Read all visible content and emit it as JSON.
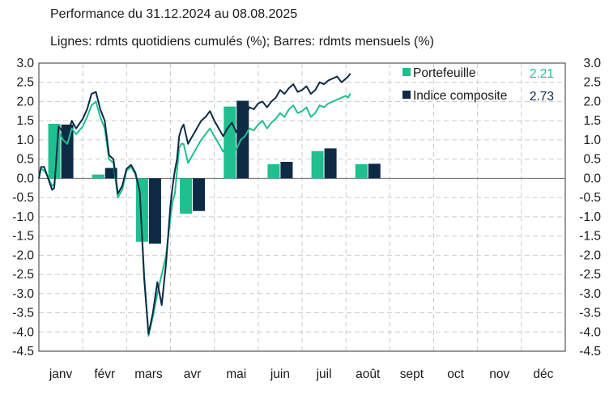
{
  "title": "Performance du 31.12.2024 au 08.08.2025",
  "subtitle": "Lignes: rdmts quotidiens cumulés (%); Barres: rdmts mensuels (%)",
  "colors": {
    "portfolio": "#1fbf8f",
    "index": "#0d2b45",
    "grid": "#cccccc"
  },
  "legend": [
    {
      "label": "Portefeuille",
      "value": "2.21",
      "color": "#1fbf8f"
    },
    {
      "label": "Indice composite",
      "value": "2.73",
      "color": "#0d2b45"
    }
  ],
  "chart_data": {
    "type": "bar+line",
    "title": "Performance du 31.12.2024 au 08.08.2025",
    "subtitle": "Lignes: rdmts quotidiens cumulés (%); Barres: rdmts mensuels (%)",
    "categories": [
      "janv",
      "févr",
      "mars",
      "avr",
      "mai",
      "juin",
      "juil",
      "août",
      "sept",
      "oct",
      "nov",
      "déc"
    ],
    "ylim": [
      -4.5,
      3.0
    ],
    "yticks": [
      "3.0",
      "2.5",
      "2.0",
      "1.5",
      "1.0",
      "0.5",
      "0.0",
      "-0.5",
      "-1.0",
      "-1.5",
      "-2.0",
      "-2.5",
      "-3.0",
      "-3.5",
      "-4.0",
      "-4.5"
    ],
    "bar_series": [
      {
        "name": "Portefeuille",
        "values": [
          1.42,
          0.1,
          -1.65,
          -0.92,
          1.87,
          0.37,
          0.71,
          0.37,
          null,
          null,
          null,
          null
        ]
      },
      {
        "name": "Indice composite",
        "values": [
          1.4,
          0.27,
          -1.7,
          -0.85,
          2.02,
          0.43,
          0.78,
          0.38,
          null,
          null,
          null,
          null
        ]
      }
    ],
    "line_series": [
      {
        "name": "Portefeuille",
        "x": [
          0,
          0.05,
          0.12,
          0.18,
          0.3,
          0.35,
          0.45,
          0.55,
          0.65,
          0.75,
          0.85,
          1.0,
          1.1,
          1.2,
          1.3,
          1.4,
          1.5,
          1.6,
          1.7,
          1.8,
          1.9,
          2.0,
          2.1,
          2.2,
          2.3,
          2.4,
          2.5,
          2.6,
          2.7,
          2.8,
          2.9,
          3.0,
          3.05,
          3.1,
          3.15,
          3.2,
          3.25,
          3.3,
          3.4,
          3.5,
          3.6,
          3.7,
          3.8,
          3.9,
          4.0,
          4.1,
          4.2,
          4.3,
          4.4,
          4.5,
          4.6,
          4.7,
          4.8,
          4.9,
          5.0,
          5.1,
          5.2,
          5.3,
          5.4,
          5.5,
          5.6,
          5.7,
          5.8,
          5.9,
          6.0,
          6.1,
          6.2,
          6.3,
          6.4,
          6.5,
          6.6,
          6.7,
          6.8,
          6.9,
          7.0,
          7.05,
          7.1
        ],
        "y": [
          0.0,
          0.25,
          0.2,
          0.1,
          -0.2,
          -0.15,
          1.2,
          1.0,
          0.9,
          1.3,
          1.15,
          1.35,
          1.6,
          1.9,
          2.0,
          1.6,
          1.3,
          0.5,
          0.4,
          -0.5,
          -0.3,
          0.2,
          0.3,
          0.1,
          -0.4,
          -2.5,
          -4.1,
          -3.6,
          -3.0,
          -2.5,
          -2.0,
          -1.0,
          -0.6,
          -0.4,
          0.2,
          0.8,
          0.9,
          0.9,
          0.4,
          0.6,
          0.8,
          1.0,
          1.15,
          1.3,
          1.1,
          0.9,
          0.7,
          0.9,
          1.0,
          0.75,
          1.0,
          1.1,
          1.3,
          1.25,
          1.4,
          1.5,
          1.3,
          1.45,
          1.55,
          1.7,
          1.6,
          1.8,
          1.9,
          1.7,
          1.75,
          1.85,
          1.6,
          1.7,
          1.9,
          1.85,
          1.95,
          2.0,
          2.05,
          2.1,
          2.15,
          2.1,
          2.21
        ]
      },
      {
        "name": "Indice composite",
        "x": [
          0,
          0.05,
          0.12,
          0.18,
          0.3,
          0.35,
          0.45,
          0.55,
          0.65,
          0.75,
          0.85,
          1.0,
          1.1,
          1.2,
          1.3,
          1.4,
          1.5,
          1.6,
          1.7,
          1.8,
          1.9,
          2.0,
          2.1,
          2.2,
          2.3,
          2.4,
          2.5,
          2.6,
          2.7,
          2.8,
          2.9,
          3.0,
          3.05,
          3.1,
          3.15,
          3.2,
          3.25,
          3.3,
          3.4,
          3.5,
          3.6,
          3.7,
          3.8,
          3.9,
          4.0,
          4.1,
          4.2,
          4.3,
          4.4,
          4.5,
          4.6,
          4.7,
          4.8,
          4.9,
          5.0,
          5.1,
          5.2,
          5.3,
          5.4,
          5.5,
          5.6,
          5.7,
          5.8,
          5.9,
          6.0,
          6.1,
          6.2,
          6.3,
          6.4,
          6.5,
          6.6,
          6.7,
          6.8,
          6.9,
          7.0,
          7.05,
          7.1
        ],
        "y": [
          0.0,
          0.3,
          0.3,
          0.1,
          -0.3,
          -0.25,
          1.35,
          1.2,
          1.1,
          1.5,
          1.3,
          1.55,
          1.8,
          2.2,
          2.25,
          1.8,
          1.5,
          0.6,
          0.5,
          -0.4,
          -0.2,
          0.25,
          0.35,
          0.15,
          -0.35,
          -2.6,
          -4.05,
          -3.5,
          -2.7,
          -3.3,
          -2.2,
          -0.7,
          -0.2,
          0.2,
          0.5,
          1.1,
          1.3,
          1.4,
          0.9,
          1.1,
          1.3,
          1.5,
          1.6,
          1.75,
          1.5,
          1.3,
          1.1,
          1.3,
          1.45,
          1.2,
          1.45,
          1.6,
          1.85,
          1.8,
          1.95,
          2.0,
          1.85,
          2.0,
          2.1,
          2.3,
          2.2,
          2.35,
          2.45,
          2.25,
          2.3,
          2.4,
          2.2,
          2.3,
          2.5,
          2.45,
          2.55,
          2.6,
          2.65,
          2.5,
          2.6,
          2.65,
          2.73
        ]
      }
    ],
    "grid": true,
    "legend_position": "top-right"
  }
}
